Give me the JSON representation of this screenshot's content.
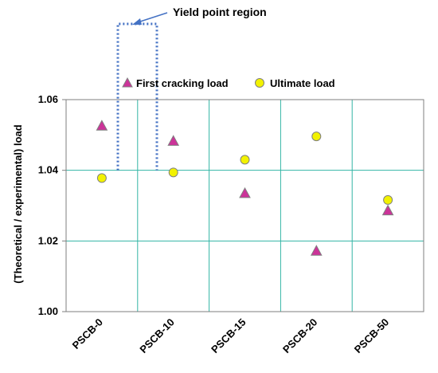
{
  "chart_data": {
    "type": "scatter",
    "categories": [
      "PSCB-0",
      "PSCB-10",
      "PSCB-15",
      "PSCB-20",
      "PSCB-50"
    ],
    "ylabel": "(Theoretical / experimental) load",
    "ylim": [
      1.0,
      1.06
    ],
    "yticks": [
      "1.00",
      "1.02",
      "1.04",
      "1.06"
    ],
    "grid": true,
    "legend_position": "top",
    "series": [
      {
        "name": "First cracking  load",
        "marker": "triangle",
        "color": "#cc3399",
        "values": [
          1.0525,
          1.0482,
          1.0334,
          1.0171,
          1.0285
        ]
      },
      {
        "name": "Ultimate load",
        "marker": "circle",
        "color": "#f2f200",
        "values": [
          1.0378,
          1.0394,
          1.043,
          1.0496,
          1.0316
        ]
      }
    ],
    "annotation": {
      "text": "Yield point region"
    },
    "colors": {
      "grid": "#33b5a5",
      "axis": "#7f7f7f",
      "region_box": "#4472c4",
      "marker_edge": "#808080"
    }
  }
}
